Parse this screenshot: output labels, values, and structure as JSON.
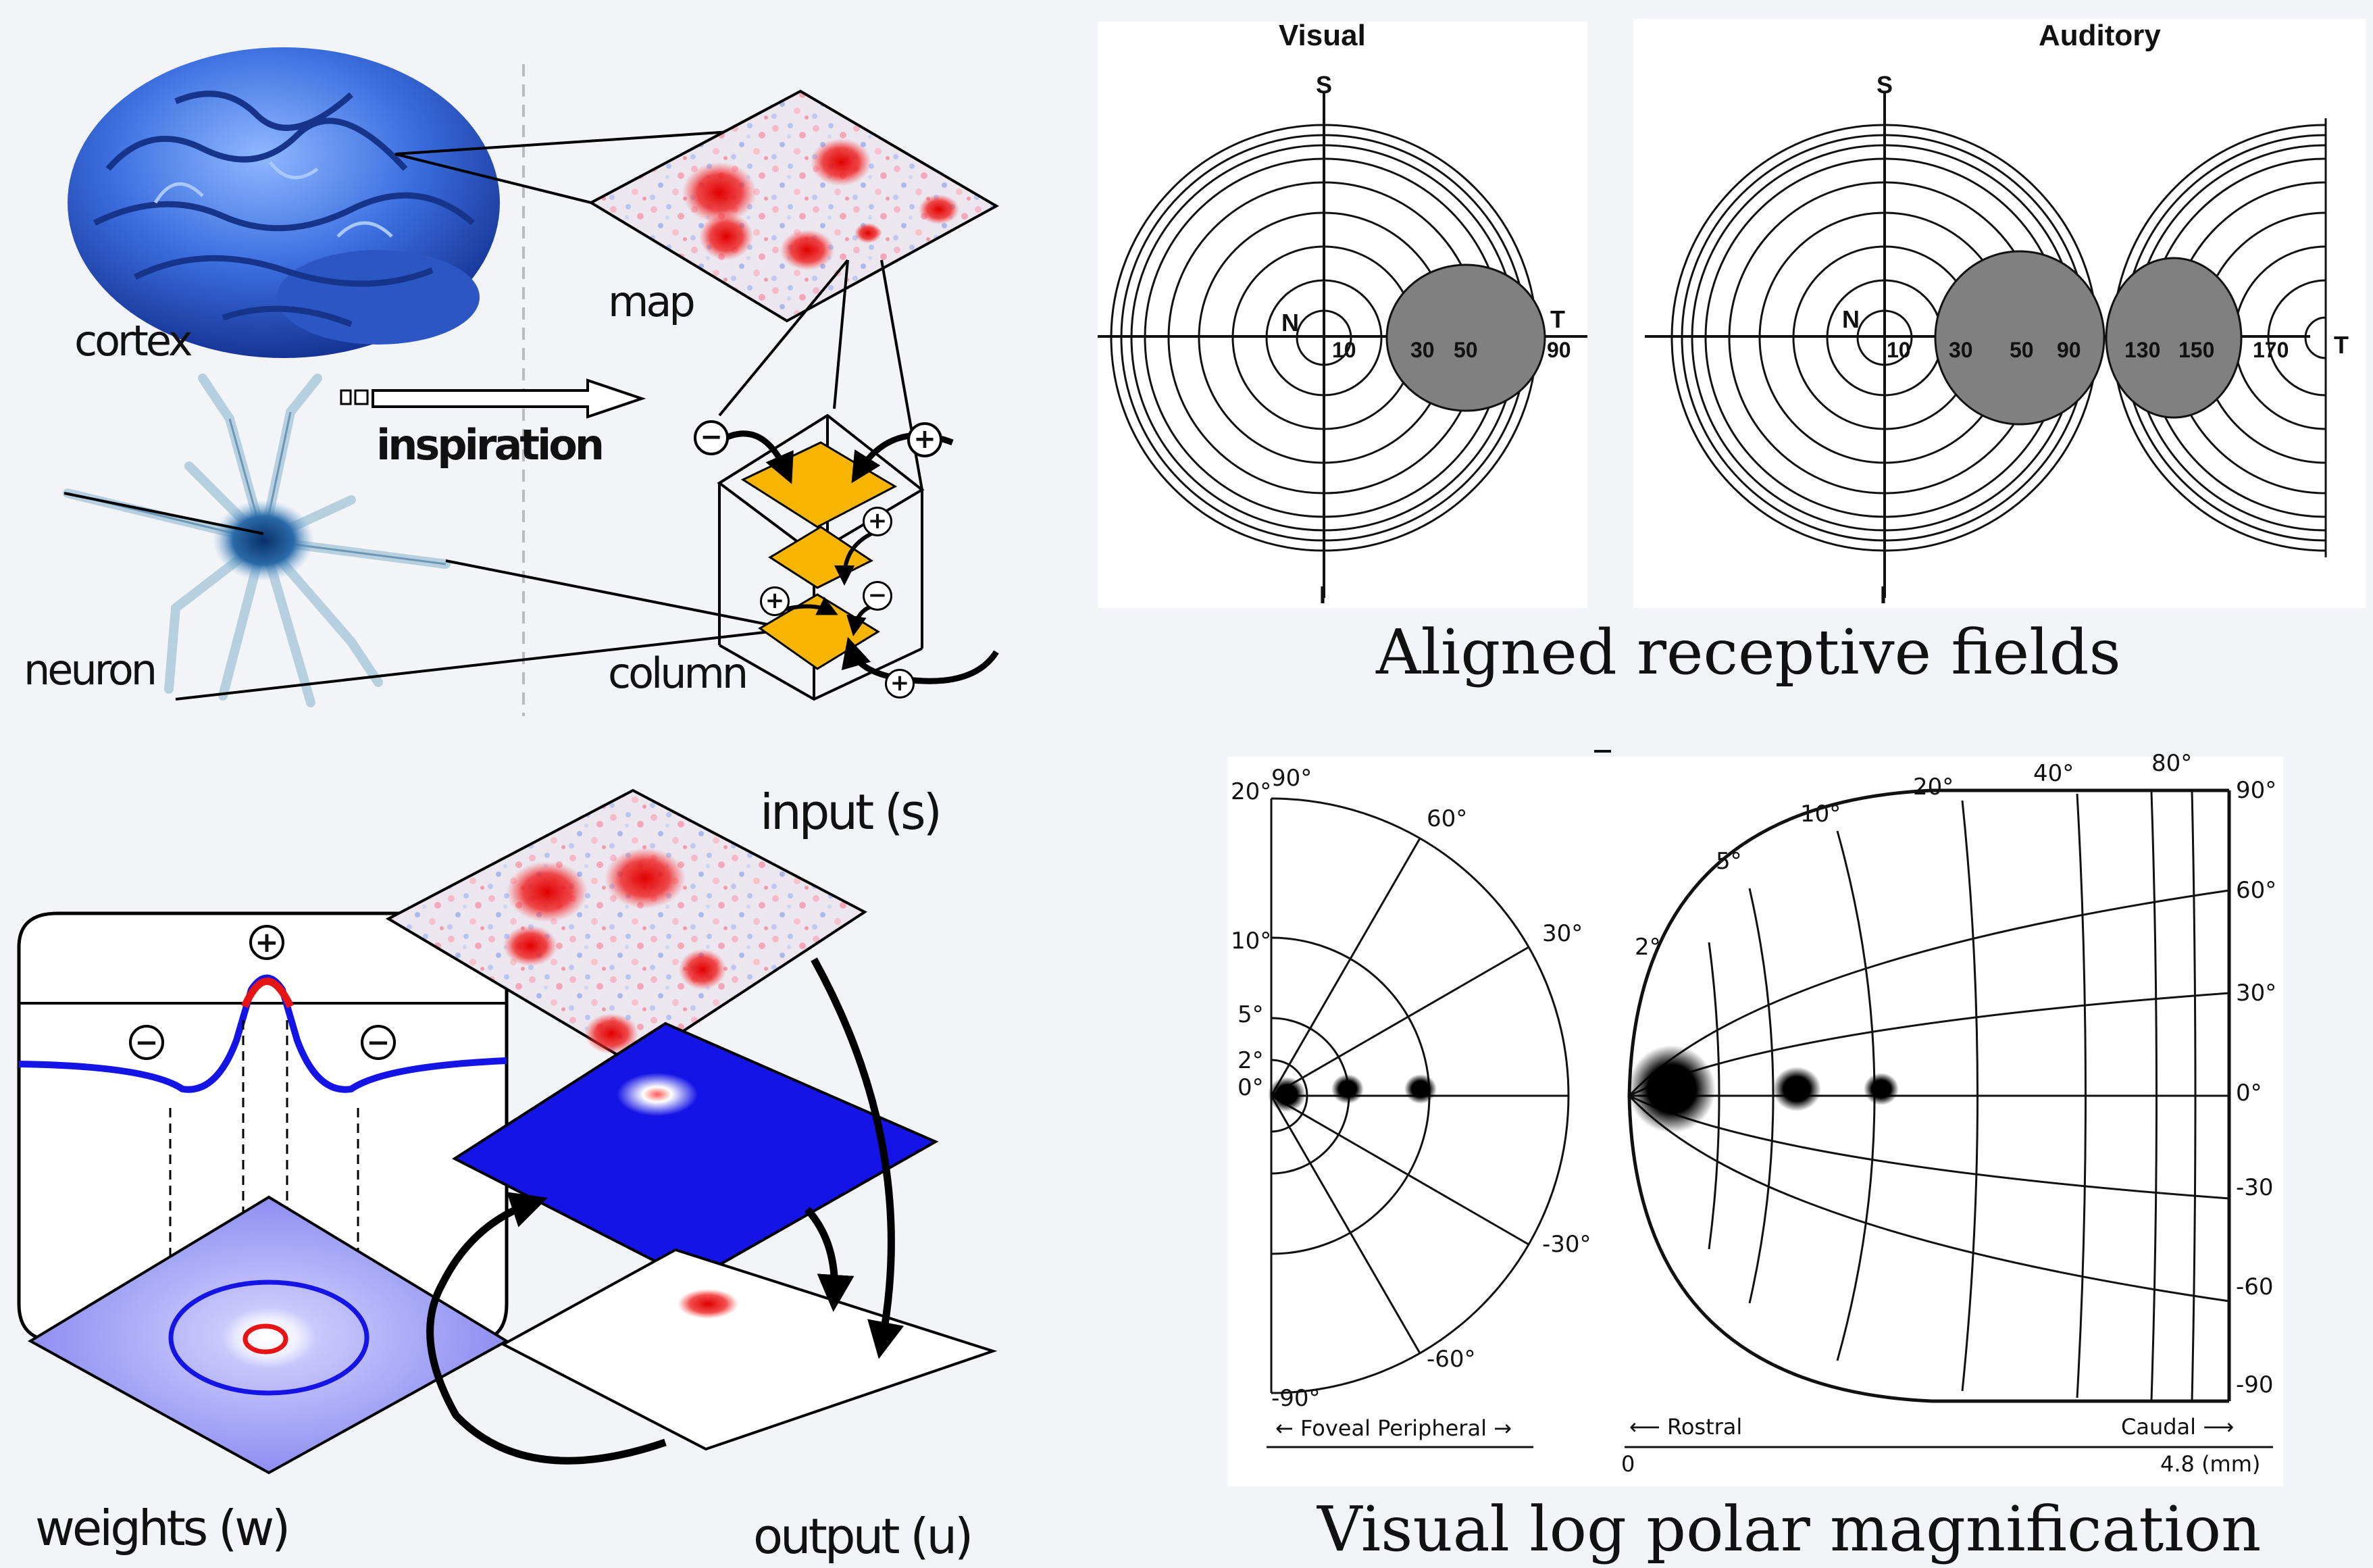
{
  "top_left": {
    "cortex_label": "cortex",
    "map_label": "map",
    "inspiration_label": "inspiration",
    "neuron_label": "neuron",
    "column_label": "column",
    "minus_sign": "−",
    "plus_sign": "+"
  },
  "top_right": {
    "visual_title": "Visual",
    "auditory_title": "Auditory",
    "caption": "Aligned receptive fields",
    "visual_axis": {
      "top": "S",
      "bottom": "I",
      "left": "N",
      "right": "T",
      "ticks": [
        "10",
        "30",
        "50",
        "90"
      ]
    },
    "auditory_axis": {
      "top": "S",
      "bottom": "I",
      "left": "N",
      "right": "T",
      "ticks": [
        "10",
        "30",
        "50",
        "90",
        "130",
        "150",
        "170"
      ]
    }
  },
  "bottom_left": {
    "input_label": "input (s)",
    "output_label": "output (u)",
    "weights_label": "weights (w)",
    "plus_sign": "+",
    "minus_sign": "−"
  },
  "bottom_right": {
    "caption": "Visual log polar magnification",
    "left_plot": {
      "ecc_labels": [
        "20°",
        "10°",
        "5°",
        "2°",
        "0°"
      ],
      "angle_labels": [
        "90°",
        "60°",
        "30°",
        "-30°",
        "-60°",
        "-90°"
      ],
      "axis_label": "← Foveal Peripheral →"
    },
    "right_plot": {
      "ecc_labels": [
        "2°",
        "5°",
        "10°",
        "20°",
        "40°",
        "80°"
      ],
      "angle_labels": [
        "90°",
        "60°",
        "30°",
        "0°",
        "-30",
        "-60",
        "-90"
      ],
      "rostral_label": "⟵ Rostral",
      "caudal_label": "Caudal ⟶",
      "scale_start": "0",
      "scale_end": "4.8 (mm)"
    }
  },
  "colors": {
    "blue": "#1414e6",
    "red": "#e61414",
    "orange": "#f7b500",
    "gray": "#808080"
  }
}
